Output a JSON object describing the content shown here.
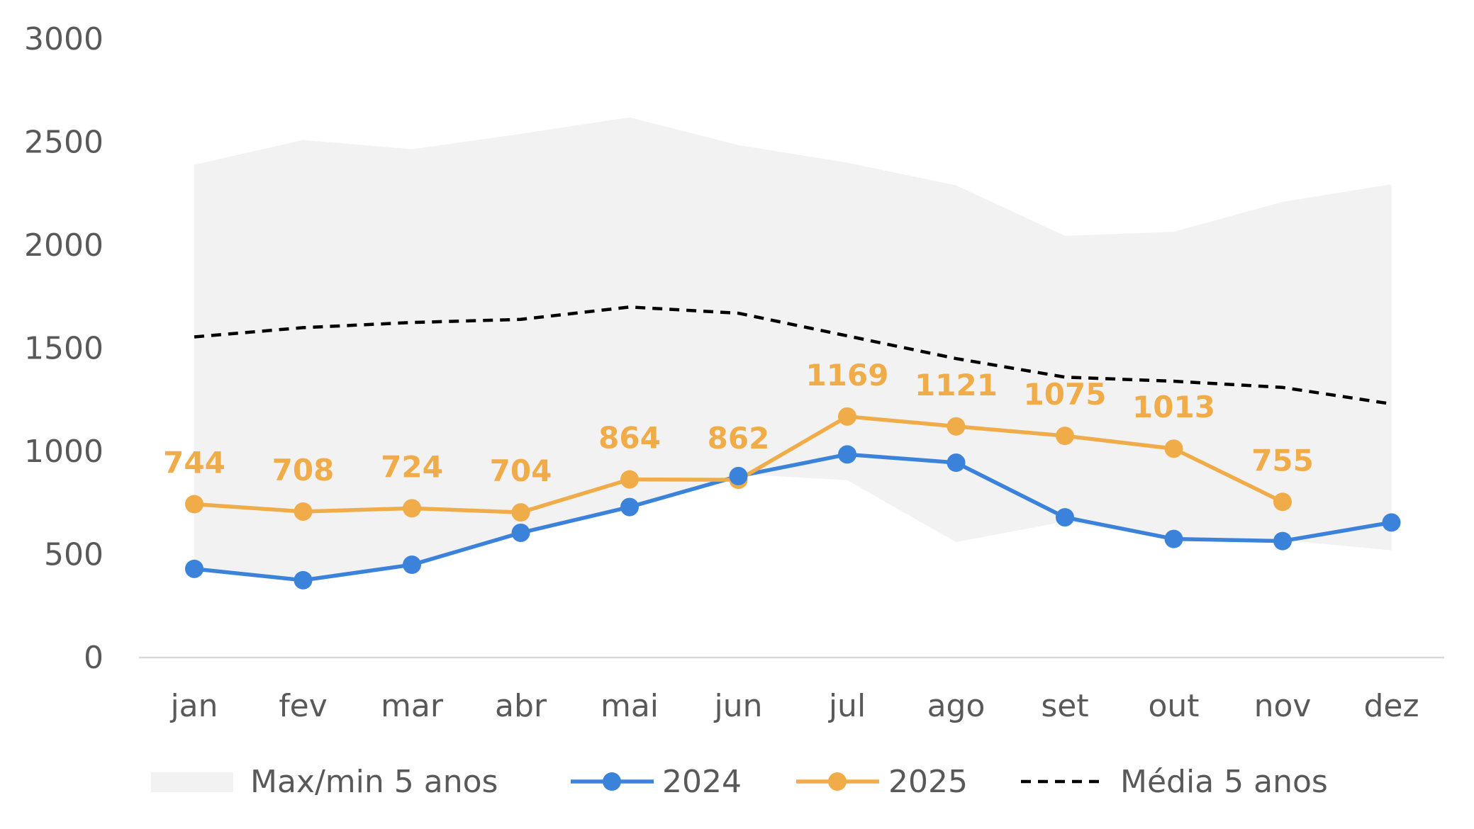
{
  "chart_data": {
    "type": "line",
    "title": "",
    "xlabel": "",
    "ylabel": "",
    "categories": [
      "jan",
      "fev",
      "mar",
      "abr",
      "mai",
      "jun",
      "jul",
      "ago",
      "set",
      "out",
      "nov",
      "dez"
    ],
    "ylim": [
      0,
      3000
    ],
    "yticks": [
      "0",
      "500",
      "1000",
      "1500",
      "2000",
      "2500",
      "3000"
    ],
    "grid": false,
    "legend_position": "bottom",
    "band": {
      "name": "Max/min 5 anos",
      "color": "#f2f2f2",
      "max": [
        2390,
        2510,
        2465,
        2540,
        2620,
        2485,
        2400,
        2290,
        2045,
        2065,
        2210,
        2295
      ],
      "min": [
        430,
        380,
        450,
        600,
        740,
        890,
        860,
        560,
        660,
        570,
        570,
        520
      ]
    },
    "series": [
      {
        "name": "2024",
        "color": "#3b82db",
        "style": "solid-marker",
        "values": [
          430,
          375,
          450,
          605,
          730,
          880,
          985,
          945,
          680,
          575,
          565,
          655
        ]
      },
      {
        "name": "2025",
        "color": "#f0ac48",
        "style": "solid-marker",
        "values": [
          744,
          708,
          724,
          704,
          864,
          862,
          1169,
          1121,
          1075,
          1013,
          755,
          null
        ],
        "data_labels": [
          "744",
          "708",
          "724",
          "704",
          "864",
          "862",
          "1169",
          "1121",
          "1075",
          "1013",
          "755",
          ""
        ]
      },
      {
        "name": "Média 5 anos",
        "color": "#000000",
        "style": "dashed",
        "values": [
          1555,
          1600,
          1625,
          1640,
          1700,
          1670,
          1560,
          1450,
          1360,
          1340,
          1310,
          1230
        ]
      }
    ]
  }
}
